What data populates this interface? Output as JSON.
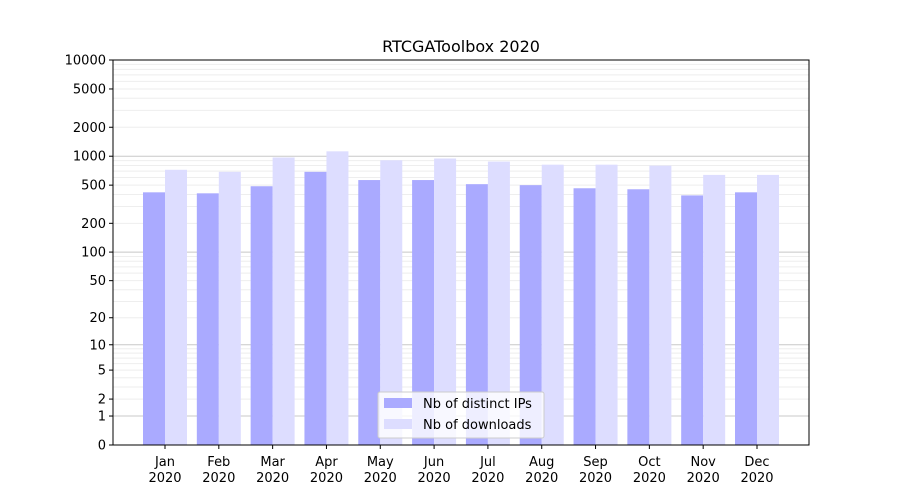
{
  "chart_data": {
    "type": "bar",
    "title": "RTCGAToolbox 2020",
    "xlabel": "",
    "ylabel": "",
    "yscale": "log(1+y)",
    "ylim": [
      0,
      10000
    ],
    "yticks": [
      0,
      1,
      2,
      5,
      10,
      20,
      50,
      100,
      200,
      500,
      1000,
      2000,
      5000,
      10000
    ],
    "grid": true,
    "legend_position": "lower-center",
    "categories": [
      "Jan",
      "Feb",
      "Mar",
      "Apr",
      "May",
      "Jun",
      "Jul",
      "Aug",
      "Sep",
      "Oct",
      "Nov",
      "Dec"
    ],
    "category_year": "2020",
    "series": [
      {
        "name": "Nb of distinct IPs",
        "color": "#aaaaff",
        "values": [
          421,
          411,
          487,
          688,
          565,
          565,
          512,
          500,
          464,
          453,
          391,
          421
        ]
      },
      {
        "name": "Nb of downloads",
        "color": "#ddddff",
        "values": [
          722,
          688,
          969,
          1124,
          907,
          946,
          879,
          816,
          816,
          797,
          639,
          639
        ]
      }
    ]
  }
}
